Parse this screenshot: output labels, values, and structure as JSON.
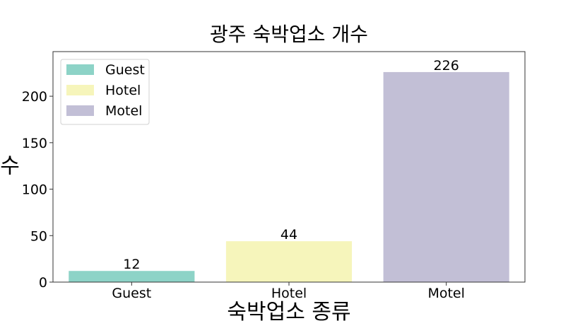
{
  "chart_data": {
    "type": "bar",
    "title": "광주 숙박업소 개수",
    "xlabel": "숙박업소 종류",
    "ylabel": "수",
    "categories": [
      "Guest",
      "Hotel",
      "Motel"
    ],
    "values": [
      12,
      44,
      226
    ],
    "data_labels": [
      "12",
      "44",
      "226"
    ],
    "colors": [
      "#8dd3c7",
      "#f6f5bb",
      "#c2bfd6"
    ],
    "ylim": [
      0,
      248
    ],
    "yticks": [
      0,
      50,
      100,
      150,
      200
    ],
    "ytick_labels": [
      "0",
      "50",
      "100",
      "150",
      "200"
    ],
    "grid": false,
    "legend": {
      "placement": "top-left",
      "entries": [
        "Guest",
        "Hotel",
        "Motel"
      ]
    }
  }
}
